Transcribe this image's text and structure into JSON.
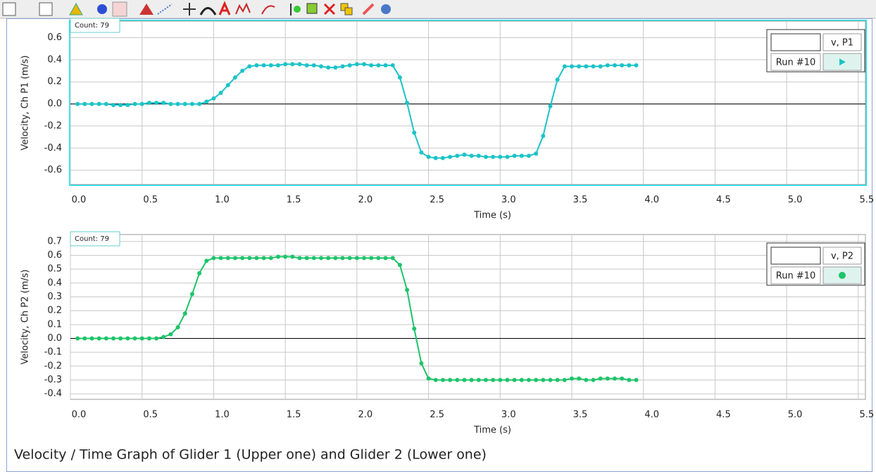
{
  "chart_data": [
    {
      "type": "line",
      "annotation": "Count: 79",
      "xlabel": "Time (s)",
      "ylabel": "Velocity, Ch P1 (m/s)",
      "xlim": [
        0,
        5.55
      ],
      "ylim": [
        -0.73,
        0.75
      ],
      "xticks": [
        {
          "value": 0,
          "label": "0.0"
        },
        0.5,
        {
          "value": 1,
          "label": "1.0"
        },
        1.5,
        {
          "value": 2,
          "label": "2.0"
        },
        2.5,
        {
          "value": 3,
          "label": "3.0"
        },
        3.5,
        {
          "value": 4,
          "label": "4.0"
        },
        4.5,
        {
          "value": 5,
          "label": "5.0"
        },
        5.5
      ],
      "yticks": [
        -0.6,
        -0.4,
        -0.2,
        {
          "value": 0,
          "label": "0.0"
        },
        0.2,
        0.4,
        0.6
      ],
      "grid": true,
      "x": [
        0.05,
        0.1,
        0.15,
        0.2,
        0.25,
        0.3,
        0.35,
        0.4,
        0.45,
        0.5,
        0.55,
        0.6,
        0.65,
        0.7,
        0.75,
        0.8,
        0.85,
        0.9,
        0.95,
        1.0,
        1.05,
        1.1,
        1.15,
        1.2,
        1.25,
        1.3,
        1.35,
        1.4,
        1.45,
        1.5,
        1.55,
        1.6,
        1.65,
        1.7,
        1.75,
        1.8,
        1.85,
        1.9,
        1.95,
        2.0,
        2.05,
        2.1,
        2.15,
        2.2,
        2.25,
        2.3,
        2.35,
        2.4,
        2.45,
        2.5,
        2.55,
        2.6,
        2.65,
        2.7,
        2.75,
        2.8,
        2.85,
        2.9,
        2.95,
        3.0,
        3.05,
        3.1,
        3.15,
        3.2,
        3.25,
        3.3,
        3.35,
        3.4,
        3.45,
        3.5,
        3.55,
        3.6,
        3.65,
        3.7,
        3.75,
        3.8,
        3.85,
        3.9,
        3.95
      ],
      "series": [
        {
          "name": "v, P1",
          "run": "Run #10",
          "color": "#1cc3c8",
          "values": [
            0.0,
            0.0,
            0.0,
            0.0,
            0.0,
            -0.01,
            -0.01,
            -0.01,
            0.0,
            0.0,
            0.01,
            0.01,
            0.01,
            0.0,
            0.0,
            0.0,
            0.0,
            0.0,
            0.02,
            0.05,
            0.1,
            0.17,
            0.24,
            0.3,
            0.34,
            0.35,
            0.35,
            0.35,
            0.35,
            0.36,
            0.36,
            0.36,
            0.35,
            0.35,
            0.34,
            0.33,
            0.33,
            0.34,
            0.35,
            0.36,
            0.36,
            0.35,
            0.35,
            0.35,
            0.35,
            0.24,
            0.01,
            -0.26,
            -0.44,
            -0.48,
            -0.49,
            -0.49,
            -0.48,
            -0.47,
            -0.46,
            -0.47,
            -0.47,
            -0.48,
            -0.48,
            -0.48,
            -0.48,
            -0.47,
            -0.47,
            -0.47,
            -0.45,
            -0.29,
            -0.02,
            0.22,
            0.34,
            0.34,
            0.34,
            0.34,
            0.34,
            0.34,
            0.35,
            0.35,
            0.35,
            0.35,
            0.35
          ]
        }
      ]
    },
    {
      "type": "line",
      "annotation": "Count: 79",
      "xlabel": "Time (s)",
      "ylabel": "Velocity, Ch P2 (m/s)",
      "xlim": [
        0,
        5.55
      ],
      "ylim": [
        -0.44,
        0.75
      ],
      "xticks": [
        {
          "value": 0,
          "label": "0.0"
        },
        0.5,
        {
          "value": 1,
          "label": "1.0"
        },
        1.5,
        {
          "value": 2,
          "label": "2.0"
        },
        2.5,
        {
          "value": 3,
          "label": "3.0"
        },
        3.5,
        {
          "value": 4,
          "label": "4.0"
        },
        4.5,
        {
          "value": 5,
          "label": "5.0"
        },
        5.5
      ],
      "yticks": [
        -0.4,
        -0.3,
        -0.2,
        -0.1,
        {
          "value": 0,
          "label": "0.0"
        },
        0.1,
        0.2,
        0.3,
        0.4,
        0.5,
        0.6,
        0.7
      ],
      "grid": true,
      "x": [
        0.05,
        0.1,
        0.15,
        0.2,
        0.25,
        0.3,
        0.35,
        0.4,
        0.45,
        0.5,
        0.55,
        0.6,
        0.65,
        0.7,
        0.75,
        0.8,
        0.85,
        0.9,
        0.95,
        1.0,
        1.05,
        1.1,
        1.15,
        1.2,
        1.25,
        1.3,
        1.35,
        1.4,
        1.45,
        1.5,
        1.55,
        1.6,
        1.65,
        1.7,
        1.75,
        1.8,
        1.85,
        1.9,
        1.95,
        2.0,
        2.05,
        2.1,
        2.15,
        2.2,
        2.25,
        2.3,
        2.35,
        2.4,
        2.45,
        2.5,
        2.55,
        2.6,
        2.65,
        2.7,
        2.75,
        2.8,
        2.85,
        2.9,
        2.95,
        3.0,
        3.05,
        3.1,
        3.15,
        3.2,
        3.25,
        3.3,
        3.35,
        3.4,
        3.45,
        3.5,
        3.55,
        3.6,
        3.65,
        3.7,
        3.75,
        3.8,
        3.85,
        3.9,
        3.95
      ],
      "series": [
        {
          "name": "v, P2",
          "run": "Run #10",
          "color": "#1ec46a",
          "values": [
            0.0,
            0.0,
            0.0,
            0.0,
            0.0,
            0.0,
            0.0,
            0.0,
            0.0,
            0.0,
            0.0,
            0.0,
            0.01,
            0.03,
            0.08,
            0.18,
            0.32,
            0.47,
            0.56,
            0.58,
            0.58,
            0.58,
            0.58,
            0.58,
            0.58,
            0.58,
            0.58,
            0.58,
            0.59,
            0.59,
            0.59,
            0.58,
            0.58,
            0.58,
            0.58,
            0.58,
            0.58,
            0.58,
            0.58,
            0.58,
            0.58,
            0.58,
            0.58,
            0.58,
            0.58,
            0.53,
            0.35,
            0.07,
            -0.18,
            -0.29,
            -0.3,
            -0.3,
            -0.3,
            -0.3,
            -0.3,
            -0.3,
            -0.3,
            -0.3,
            -0.3,
            -0.3,
            -0.3,
            -0.3,
            -0.3,
            -0.3,
            -0.3,
            -0.3,
            -0.3,
            -0.3,
            -0.3,
            -0.29,
            -0.29,
            -0.3,
            -0.3,
            -0.29,
            -0.29,
            -0.29,
            -0.29,
            -0.3,
            -0.3
          ]
        }
      ]
    }
  ],
  "caption": "Velocity / Time Graph of Glider 1 (Upper one) and Glider 2 (Lower one)"
}
